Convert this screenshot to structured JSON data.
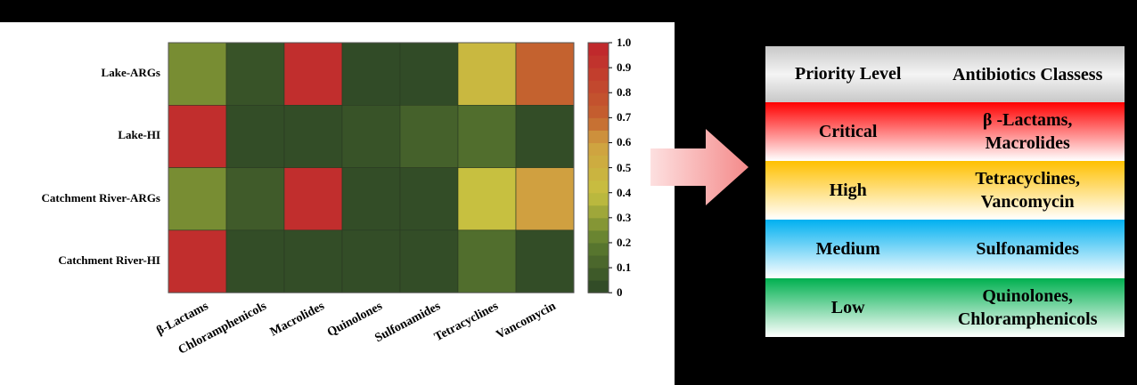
{
  "chart_data": {
    "type": "heatmap",
    "rows": [
      "Lake-ARGs",
      "Lake-HI",
      "Catchment River-ARGs",
      "Catchment River-HI"
    ],
    "columns": [
      "β-Lactams",
      "Chloramphenicols",
      "Macrolides",
      "Quinolones",
      "Sulfonamides",
      "Tetracyclines",
      "Vancomycin"
    ],
    "values": [
      [
        0.25,
        0.05,
        0.95,
        0.02,
        0.02,
        0.45,
        0.7
      ],
      [
        0.95,
        0.03,
        0.03,
        0.05,
        0.1,
        0.15,
        0.03
      ],
      [
        0.25,
        0.08,
        0.95,
        0.03,
        0.03,
        0.4,
        0.6
      ],
      [
        0.95,
        0.03,
        0.03,
        0.03,
        0.03,
        0.15,
        0.03
      ]
    ],
    "colorbar": {
      "range": [
        0,
        1.0
      ],
      "ticks": [
        "1.0",
        "0.9",
        "0.8",
        "0.7",
        "0.6",
        "0.5",
        "0.4",
        "0.3",
        "0.2",
        "0.1",
        "0"
      ]
    },
    "colorscale": [
      "#2c4526",
      "#5d7c2f",
      "#c7c040",
      "#d0a040",
      "#c4622f",
      "#c0242c"
    ]
  },
  "table": {
    "headers": [
      "Priority Level",
      "Antibiotics Classess"
    ],
    "rows": [
      {
        "level": "Critical",
        "classes": [
          "β -Lactams,",
          "Macrolides"
        ],
        "color": "#ff0000"
      },
      {
        "level": "High",
        "classes": [
          "Tetracyclines,",
          "Vancomycin"
        ],
        "color": "#ffc000"
      },
      {
        "level": "Medium",
        "classes": [
          "Sulfonamides"
        ],
        "color": "#00b0f0"
      },
      {
        "level": "Low",
        "classes": [
          "Quinolones,",
          "Chloramphenicols"
        ],
        "color": "#00b050"
      }
    ]
  },
  "arrow_color": "#f8a0a0"
}
